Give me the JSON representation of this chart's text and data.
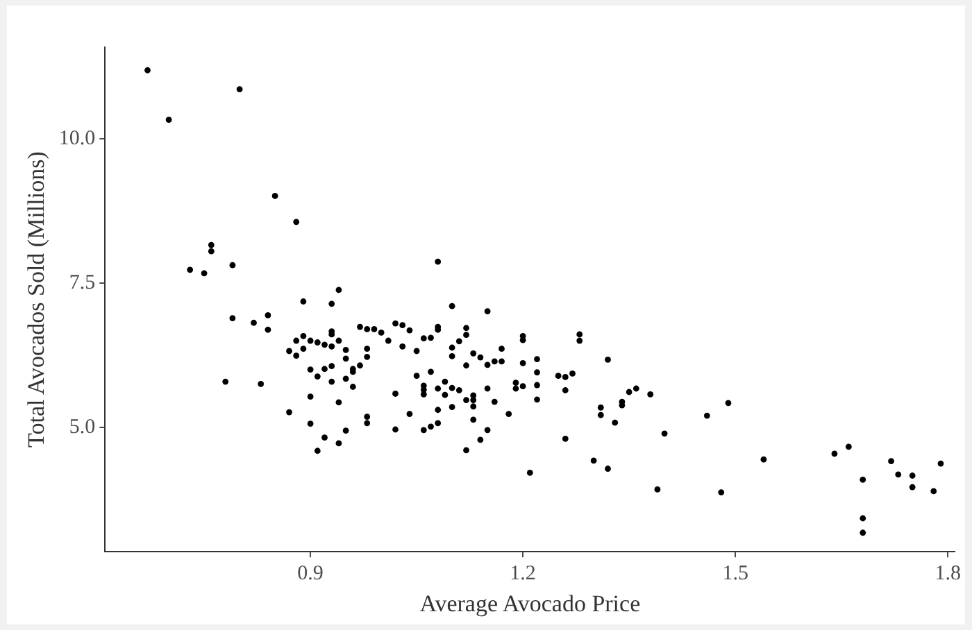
{
  "chart_data": {
    "type": "scatter",
    "xlabel": "Average Avocado Price",
    "ylabel": "Total Avocados Sold (Millions)",
    "xlim": [
      0.61,
      1.81
    ],
    "xticks": [
      0.9,
      1.2,
      1.5,
      1.8
    ],
    "ylim": [
      2.84,
      11.59
    ],
    "yticks": [
      {
        "value": 5,
        "label": "5.0"
      },
      7.5,
      {
        "value": 10,
        "label": "10.0"
      }
    ],
    "grid": false,
    "legend": false,
    "marker": "circle",
    "series": [
      {
        "color": "#000000",
        "x": [
          0.67,
          0.7,
          0.8,
          0.85,
          0.88,
          0.76,
          0.76,
          0.73,
          0.75,
          0.79,
          1.08,
          0.94,
          0.89,
          0.93,
          1.1,
          1.15,
          0.79,
          0.84,
          0.82,
          0.84,
          0.88,
          0.89,
          0.9,
          0.91,
          0.92,
          0.93,
          0.93,
          0.93,
          0.94,
          0.87,
          0.88,
          0.89,
          0.95,
          0.95,
          0.97,
          0.98,
          0.99,
          1.0,
          1.01,
          0.98,
          0.98,
          1.02,
          1.03,
          1.04,
          1.03,
          1.05,
          1.06,
          1.07,
          1.08,
          1.08,
          1.1,
          1.1,
          1.11,
          1.12,
          1.12,
          1.13,
          1.12,
          1.14,
          1.15,
          1.16,
          1.17,
          1.17,
          1.2,
          1.2,
          1.2,
          0.9,
          0.91,
          0.92,
          0.93,
          0.93,
          0.95,
          0.96,
          0.96,
          0.97,
          0.96,
          0.78,
          0.83,
          0.9,
          0.94,
          0.87,
          0.9,
          0.92,
          0.91,
          0.94,
          0.95,
          0.98,
          0.98,
          1.02,
          1.02,
          1.04,
          1.05,
          1.06,
          1.06,
          1.06,
          1.06,
          1.07,
          1.07,
          1.08,
          1.08,
          1.08,
          1.09,
          1.09,
          1.1,
          1.1,
          1.11,
          1.12,
          1.12,
          1.13,
          1.13,
          1.13,
          1.13,
          1.14,
          1.15,
          1.15,
          1.16,
          1.18,
          1.19,
          1.19,
          1.2,
          1.21,
          1.22,
          1.22,
          1.22,
          1.22,
          1.25,
          1.26,
          1.27,
          1.26,
          1.26,
          1.28,
          1.28,
          1.32,
          1.31,
          1.31,
          1.33,
          1.34,
          1.34,
          1.35,
          1.36,
          1.38,
          1.4,
          1.3,
          1.32,
          1.39,
          1.46,
          1.49,
          1.48,
          1.54,
          1.64,
          1.66,
          1.68,
          1.68,
          1.68,
          1.72,
          1.73,
          1.75,
          1.75,
          1.78,
          1.79
        ],
        "values": [
          11.19,
          10.33,
          10.86,
          9.01,
          8.56,
          8.16,
          8.05,
          7.73,
          7.67,
          7.81,
          7.87,
          7.38,
          7.18,
          7.14,
          7.1,
          7.01,
          6.89,
          6.94,
          6.81,
          6.69,
          6.5,
          6.58,
          6.5,
          6.47,
          6.43,
          6.66,
          6.61,
          6.4,
          6.5,
          6.32,
          6.24,
          6.36,
          6.34,
          6.19,
          6.74,
          6.7,
          6.7,
          6.64,
          6.5,
          6.36,
          6.22,
          6.8,
          6.77,
          6.68,
          6.4,
          6.32,
          6.54,
          6.55,
          6.74,
          6.69,
          6.38,
          6.23,
          6.49,
          6.72,
          6.6,
          6.28,
          6.07,
          6.21,
          6.08,
          6.14,
          6.14,
          6.36,
          6.58,
          6.51,
          6.11,
          6.0,
          5.88,
          6.01,
          6.06,
          5.79,
          5.84,
          6.01,
          5.96,
          6.07,
          5.7,
          5.79,
          5.75,
          5.53,
          5.43,
          5.26,
          5.06,
          4.82,
          4.59,
          4.72,
          4.94,
          5.18,
          5.07,
          5.58,
          4.96,
          5.23,
          5.89,
          5.72,
          5.65,
          5.57,
          4.95,
          5.96,
          5.01,
          5.67,
          5.3,
          5.07,
          5.79,
          5.56,
          5.68,
          5.35,
          5.64,
          5.47,
          4.6,
          5.55,
          5.47,
          5.36,
          5.13,
          4.78,
          5.67,
          4.95,
          5.44,
          5.23,
          5.77,
          5.67,
          5.71,
          4.21,
          6.18,
          5.95,
          5.73,
          5.48,
          5.89,
          5.87,
          5.93,
          5.64,
          4.8,
          6.61,
          6.5,
          6.17,
          5.34,
          5.21,
          5.08,
          5.44,
          5.38,
          5.61,
          5.67,
          5.57,
          4.89,
          4.42,
          4.28,
          3.92,
          5.2,
          5.42,
          3.87,
          4.44,
          4.54,
          4.66,
          4.09,
          3.42,
          3.17,
          4.41,
          4.18,
          4.16,
          3.96,
          3.89,
          4.37
        ]
      }
    ]
  }
}
